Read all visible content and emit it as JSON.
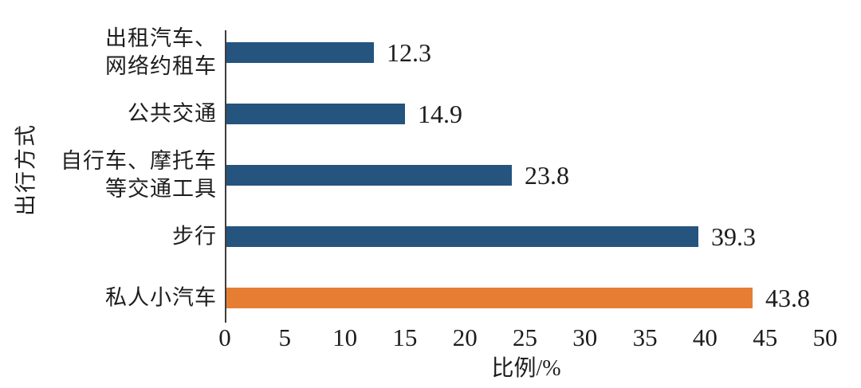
{
  "chart_data": {
    "type": "bar",
    "orientation": "horizontal",
    "title": "",
    "xlabel": "比例/%",
    "ylabel": "出行方式",
    "xlim": [
      0,
      50
    ],
    "xticks": [
      0,
      5,
      10,
      15,
      20,
      25,
      30,
      35,
      40,
      45,
      50
    ],
    "grid": false,
    "legend": null,
    "categories": [
      "出租汽车、网络约租车",
      "公共交通",
      "自行车、摩托车等交通工具",
      "步行",
      "私人小汽车"
    ],
    "category_lines": [
      [
        "出租汽车、",
        "网络约租车"
      ],
      [
        "公共交通"
      ],
      [
        "自行车、摩托车",
        "等交通工具"
      ],
      [
        "步行"
      ],
      [
        "私人小汽车"
      ]
    ],
    "values": [
      12.3,
      14.9,
      23.8,
      39.3,
      43.8
    ],
    "value_labels": [
      "12.3",
      "14.9",
      "23.8",
      "39.3",
      "43.8"
    ],
    "bar_colors": [
      "#25547E",
      "#25547E",
      "#25547E",
      "#25547E",
      "#E57E33"
    ]
  },
  "colors": {
    "bar_blue": "#25547E",
    "bar_orange": "#E57E33",
    "axis_line": "#3d3d3d",
    "text": "#1d1d1d",
    "background": "#ffffff"
  }
}
